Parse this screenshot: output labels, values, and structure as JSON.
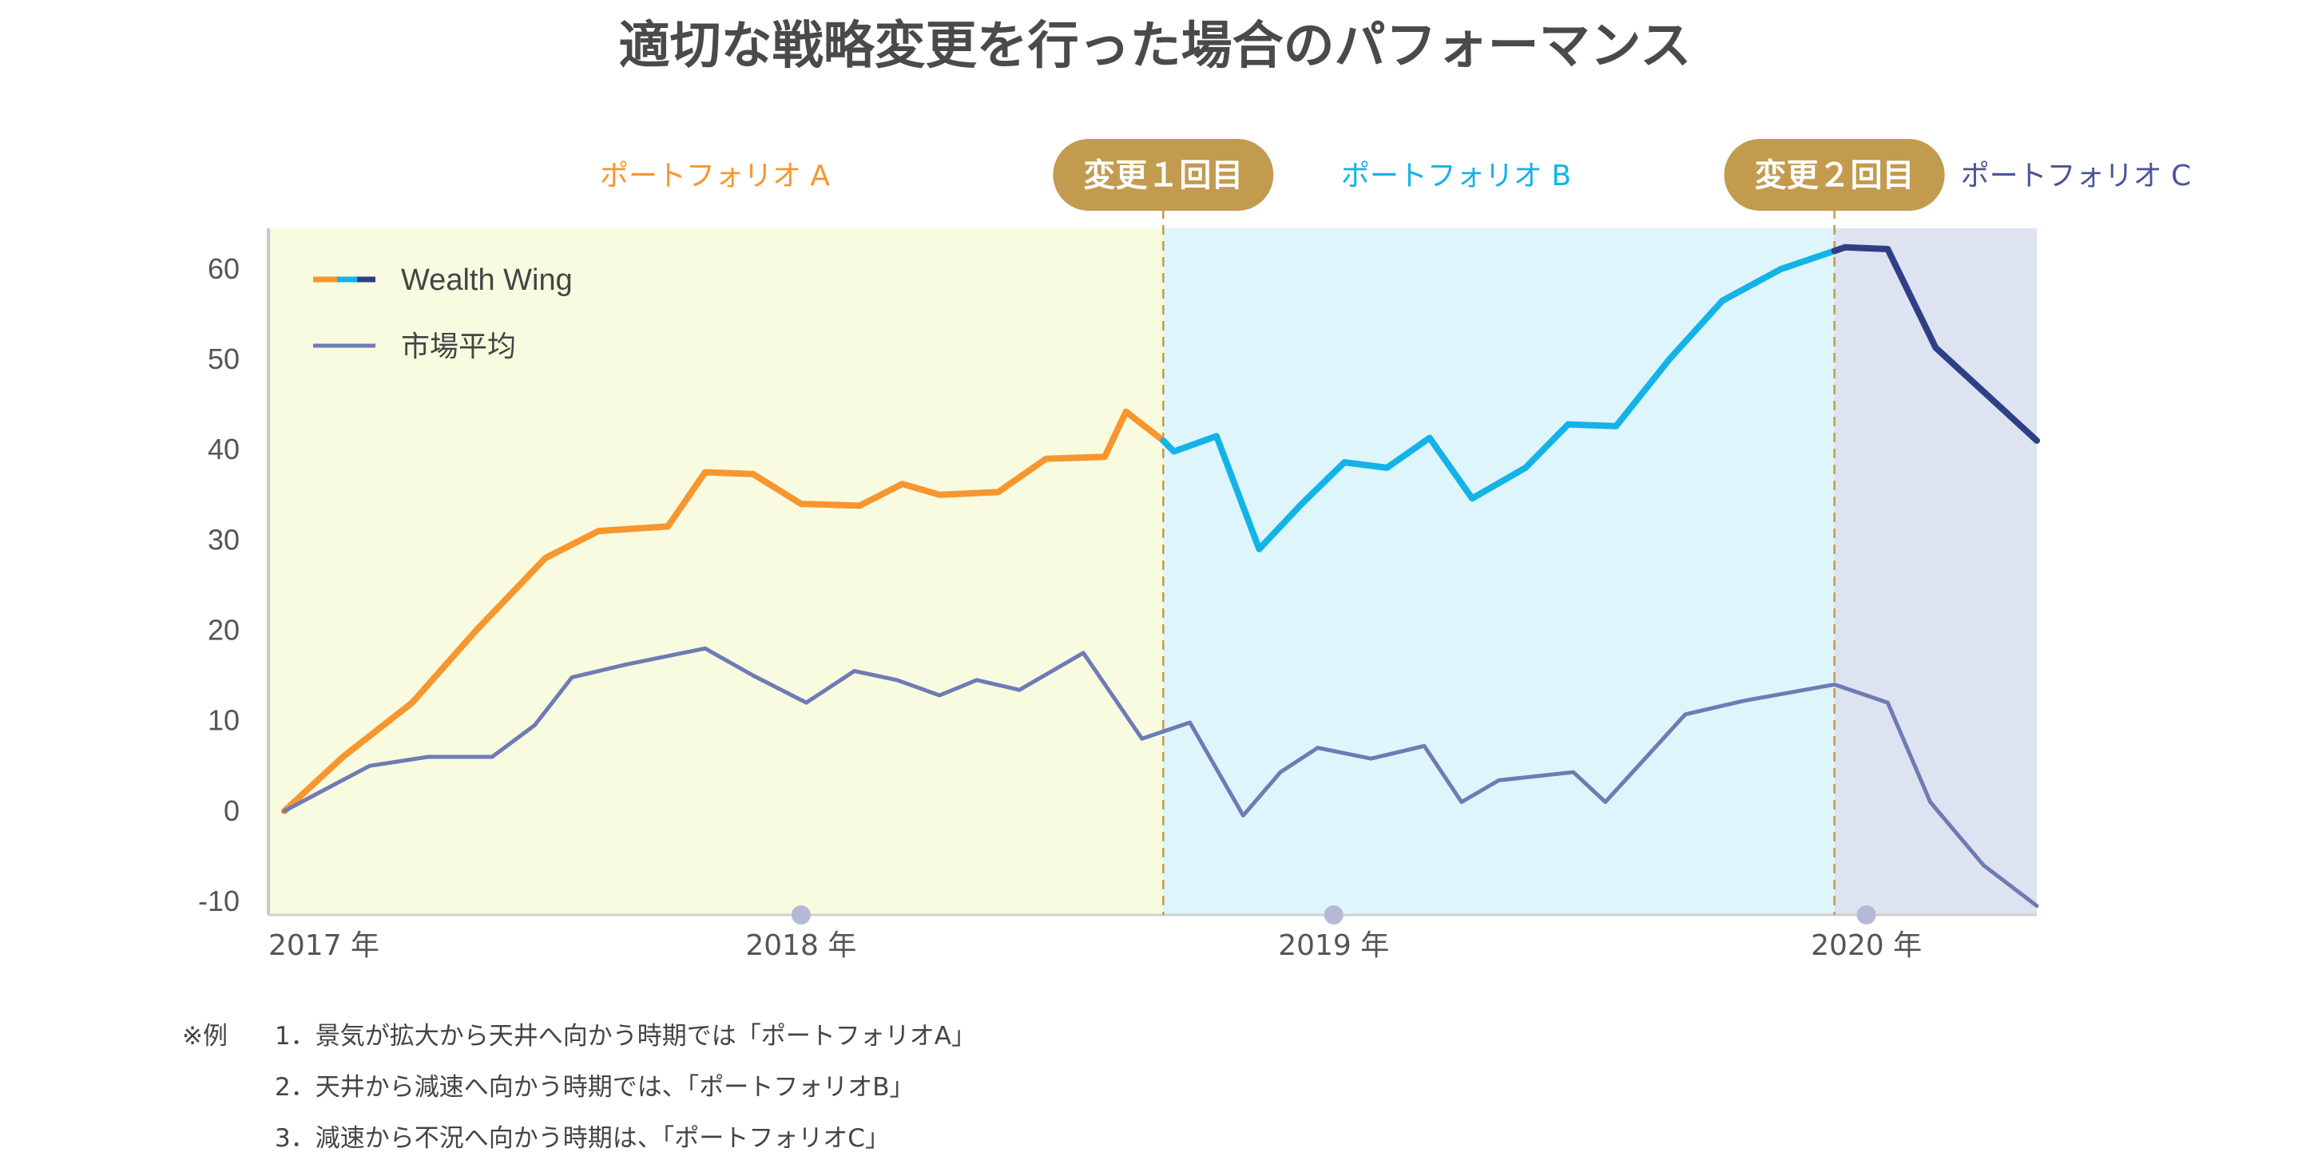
{
  "title": "適切な戦略変更を行った場合のパフォーマンス",
  "colors": {
    "portfolio_a": "#f7962e",
    "portfolio_b": "#13b3e8",
    "portfolio_c": "#2f3f86",
    "market": "#6f7bb5",
    "bg_a": "#f8fbdf",
    "bg_b": "#dff5fc",
    "bg_c": "#dde3f0",
    "change_badge": "#c29b4f",
    "axis_text": "#555555"
  },
  "footnote": {
    "prefix": "※例",
    "items": [
      "1．景気が拡大から天井へ向かう時期では「ポートフォリオA」",
      "2．天井から減速へ向かう時期では、「ポートフォリオB」",
      "3．減速から不況へ向かう時期は、「ポートフォリオC」"
    ]
  },
  "chart_data": {
    "type": "line",
    "title": "適切な戦略変更を行った場合のパフォーマンス",
    "xlabel": "",
    "ylabel": "",
    "ylim": [
      -10,
      60
    ],
    "yticks": [
      60,
      50,
      40,
      30,
      20,
      10,
      0,
      -10
    ],
    "xlim": [
      2017.0,
      2020.32
    ],
    "xticks": [
      {
        "value": 2017.0,
        "label": "2017 年"
      },
      {
        "value": 2018.0,
        "label": "2018 年"
      },
      {
        "value": 2019.0,
        "label": "2019 年"
      },
      {
        "value": 2020.0,
        "label": "2020 年"
      }
    ],
    "legend": {
      "placement": "top-left",
      "entries": [
        "Wealth Wing",
        "市場平均"
      ]
    },
    "regions": [
      {
        "label": "ポートフォリオ A",
        "from": 2017.0,
        "to": 2018.68,
        "color": "#f7962e"
      },
      {
        "label": "ポートフォリオ B",
        "from": 2018.68,
        "to": 2019.94,
        "color": "#13b3e8"
      },
      {
        "label": "ポートフォリオ C",
        "from": 2019.94,
        "to": 2020.32,
        "color": "#4b5594"
      }
    ],
    "changes": [
      {
        "label": "変更１回目",
        "x": 2018.68
      },
      {
        "label": "変更２回目",
        "x": 2019.94
      }
    ],
    "series": [
      {
        "name": "Wealth Wing",
        "segments": [
          {
            "color": "#f7962e",
            "points": [
              [
                2017.03,
                0
              ],
              [
                2017.14,
                6
              ],
              [
                2017.27,
                12
              ],
              [
                2017.39,
                20
              ],
              [
                2017.52,
                28
              ],
              [
                2017.62,
                31
              ],
              [
                2017.75,
                31.5
              ],
              [
                2017.82,
                37.5
              ],
              [
                2017.91,
                37.3
              ],
              [
                2018.0,
                34
              ],
              [
                2018.11,
                33.8
              ],
              [
                2018.19,
                36.2
              ],
              [
                2018.26,
                35
              ],
              [
                2018.37,
                35.3
              ],
              [
                2018.46,
                39
              ],
              [
                2018.57,
                39.2
              ],
              [
                2018.61,
                44.2
              ],
              [
                2018.68,
                41
              ]
            ]
          },
          {
            "color": "#13b3e8",
            "points": [
              [
                2018.68,
                41
              ],
              [
                2018.7,
                39.8
              ],
              [
                2018.78,
                41.5
              ],
              [
                2018.86,
                29
              ],
              [
                2018.94,
                34
              ],
              [
                2019.02,
                38.6
              ],
              [
                2019.1,
                38
              ],
              [
                2019.18,
                41.3
              ],
              [
                2019.26,
                34.6
              ],
              [
                2019.36,
                38
              ],
              [
                2019.44,
                42.8
              ],
              [
                2019.53,
                42.6
              ],
              [
                2019.63,
                50
              ],
              [
                2019.73,
                56.5
              ],
              [
                2019.84,
                60
              ],
              [
                2019.94,
                62
              ]
            ]
          },
          {
            "color": "#2f3f86",
            "points": [
              [
                2019.94,
                62
              ],
              [
                2019.96,
                62.4
              ],
              [
                2020.04,
                62.2
              ],
              [
                2020.13,
                51.3
              ],
              [
                2020.32,
                41
              ]
            ]
          }
        ]
      },
      {
        "name": "市場平均",
        "segments": [
          {
            "color": "#6f7bb5",
            "points": [
              [
                2017.03,
                0
              ],
              [
                2017.19,
                5
              ],
              [
                2017.3,
                6
              ],
              [
                2017.42,
                6
              ],
              [
                2017.5,
                9.5
              ],
              [
                2017.57,
                14.8
              ],
              [
                2017.67,
                16.2
              ],
              [
                2017.82,
                18
              ],
              [
                2017.91,
                15
              ],
              [
                2018.01,
                12
              ],
              [
                2018.1,
                15.5
              ],
              [
                2018.18,
                14.5
              ],
              [
                2018.26,
                12.8
              ],
              [
                2018.33,
                14.5
              ],
              [
                2018.41,
                13.4
              ],
              [
                2018.53,
                17.5
              ],
              [
                2018.64,
                8
              ],
              [
                2018.73,
                9.8
              ],
              [
                2018.83,
                -0.5
              ],
              [
                2018.9,
                4.3
              ],
              [
                2018.97,
                7
              ],
              [
                2019.07,
                5.8
              ],
              [
                2019.17,
                7.2
              ],
              [
                2019.24,
                1
              ],
              [
                2019.31,
                3.4
              ],
              [
                2019.45,
                4.3
              ],
              [
                2019.51,
                1
              ],
              [
                2019.66,
                10.7
              ],
              [
                2019.77,
                12.2
              ],
              [
                2019.94,
                14
              ],
              [
                2020.04,
                12
              ],
              [
                2020.12,
                1
              ],
              [
                2020.22,
                -6
              ],
              [
                2020.32,
                -10.5
              ]
            ]
          }
        ]
      }
    ]
  }
}
